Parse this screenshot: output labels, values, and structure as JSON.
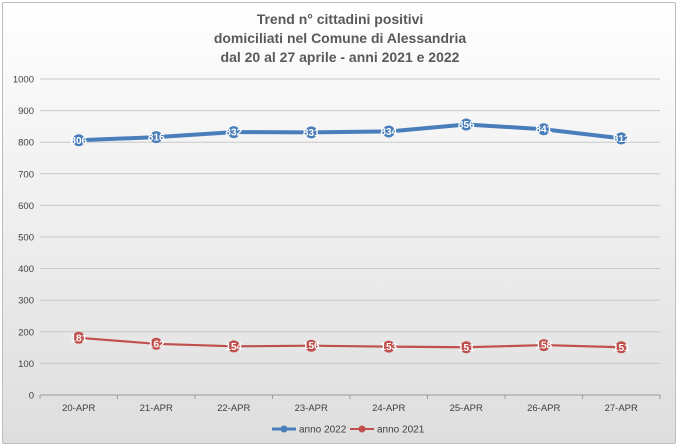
{
  "title_lines": [
    "Trend n° cittadini positivi",
    "domiciliati nel Comune di Alessandria",
    "dal 20 al 27 aprile - anni 2021 e 2022"
  ],
  "chart_data": {
    "type": "line",
    "title": "Trend n° cittadini positivi domiciliati nel Comune di Alessandria dal 20 al 27 aprile - anni 2021 e 2022",
    "categories": [
      "20-APR",
      "21-APR",
      "22-APR",
      "23-APR",
      "24-APR",
      "25-APR",
      "26-APR",
      "27-APR"
    ],
    "ylim": [
      0,
      1000
    ],
    "yticks": [
      0,
      100,
      200,
      300,
      400,
      500,
      600,
      700,
      800,
      900,
      1000
    ],
    "grid": true,
    "legend": "bottom",
    "series": [
      {
        "name": "anno 2022",
        "color": "#4a7ebb",
        "values": [
          806,
          816,
          832,
          831,
          834,
          856,
          841,
          812
        ],
        "labels": [
          "806",
          "816",
          "832",
          "831",
          "834",
          "856",
          "841",
          "812"
        ]
      },
      {
        "name": "anno 2021",
        "color": "#c0504d",
        "values": [
          181,
          162,
          154,
          156,
          153,
          151,
          158,
          151
        ],
        "labels": [
          "181",
          "162",
          "154",
          "156",
          "153",
          "151",
          "158",
          "151"
        ]
      }
    ]
  }
}
